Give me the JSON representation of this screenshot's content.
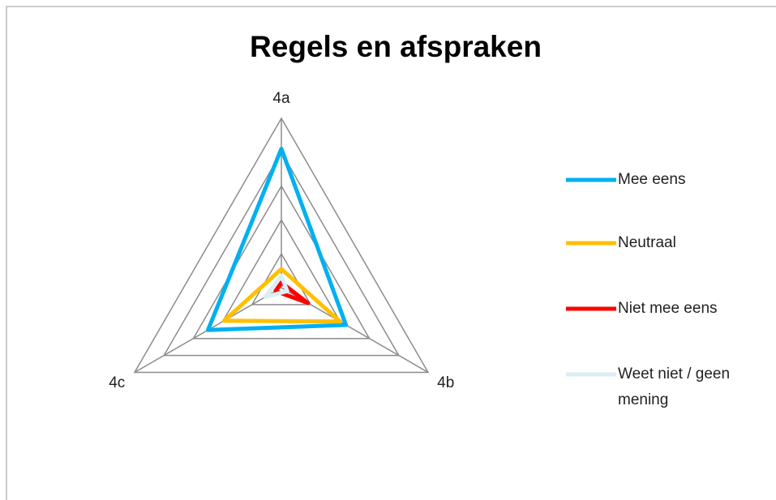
{
  "chart_data": {
    "type": "radar",
    "title": "Regels en afspraken",
    "categories": [
      "4a",
      "4b",
      "4c"
    ],
    "ylim": [
      0,
      5
    ],
    "yticks": [
      1,
      2,
      3,
      4,
      5
    ],
    "grid": true,
    "legend": "right",
    "series": [
      {
        "name": "Mee eens",
        "color": "#00b0f0",
        "values": [
          4.1,
          2.2,
          2.5
        ]
      },
      {
        "name": "Neutraal",
        "color": "#ffc000",
        "values": [
          0.55,
          2.0,
          1.95
        ]
      },
      {
        "name": "Niet mee eens",
        "color": "#ff0000",
        "values": [
          0.15,
          0.9,
          0.2
        ]
      },
      {
        "name": "Weet niet / geen mening",
        "color": "#dbeef4",
        "values": [
          0.35,
          0.2,
          0.55
        ]
      }
    ]
  }
}
